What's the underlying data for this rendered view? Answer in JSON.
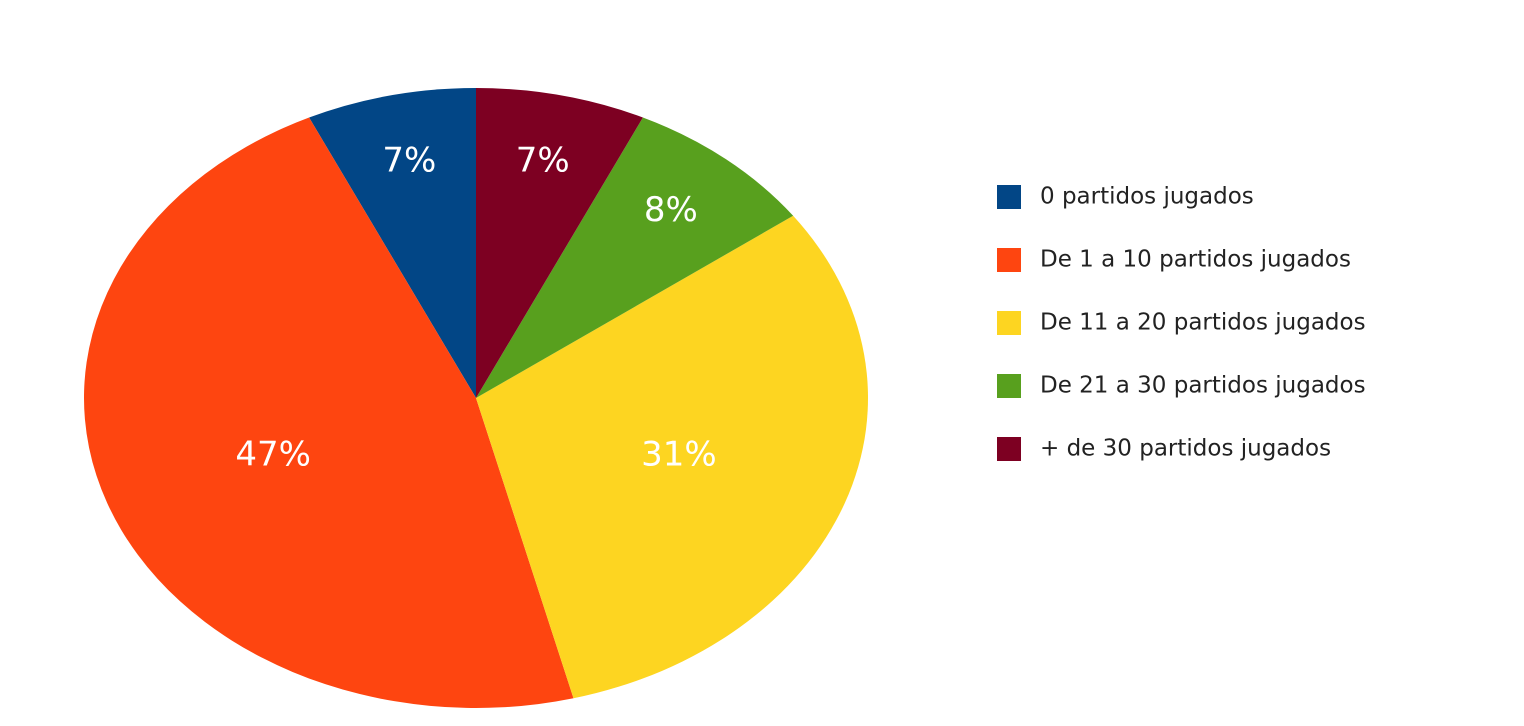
{
  "chart_data": {
    "type": "pie",
    "categories": [
      "0 partidos jugados",
      "De 1 a 10 partidos jugados",
      "De 11 a 20 partidos jugados",
      "De 21 a 30 partidos jugados",
      "+ de 30 partidos jugados"
    ],
    "values": [
      7,
      47,
      31,
      8,
      7
    ],
    "value_labels": [
      "7%",
      "47%",
      "31%",
      "8%",
      "7%"
    ],
    "colors": [
      "#024686",
      "#fe4510",
      "#fdd521",
      "#58a01e",
      "#7d0022"
    ],
    "legend": "right"
  }
}
